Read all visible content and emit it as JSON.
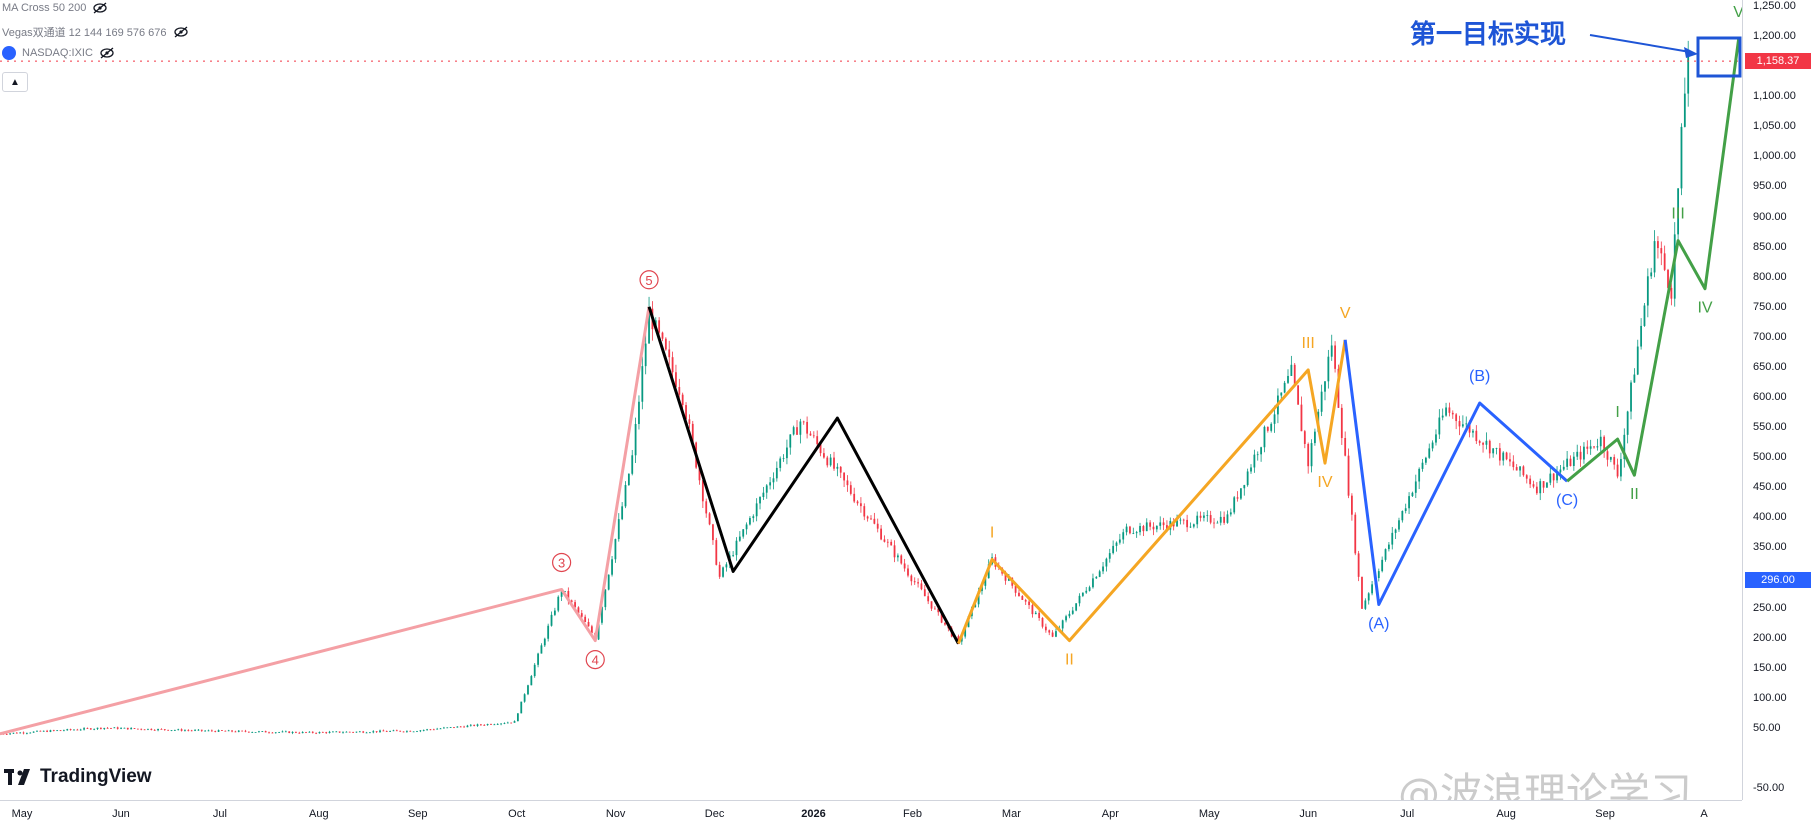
{
  "legend": {
    "ma_cross": "MA Cross 50 200",
    "vegas": "Vegas双通道 12 144 169 576 676",
    "symbol": "NASDAQ:IXIC"
  },
  "annotation": "第一目标实现",
  "branding": {
    "logo_text": "TradingView",
    "watermark": "@波浪理论学习"
  },
  "price_axis": {
    "ticks": [
      {
        "label": "1,250.00",
        "value": 1250
      },
      {
        "label": "1,200.00",
        "value": 1200
      },
      {
        "label": "1,100.00",
        "value": 1100
      },
      {
        "label": "1,050.00",
        "value": 1050
      },
      {
        "label": "1,000.00",
        "value": 1000
      },
      {
        "label": "950.00",
        "value": 950
      },
      {
        "label": "900.00",
        "value": 900
      },
      {
        "label": "850.00",
        "value": 850
      },
      {
        "label": "800.00",
        "value": 800
      },
      {
        "label": "750.00",
        "value": 750
      },
      {
        "label": "700.00",
        "value": 700
      },
      {
        "label": "650.00",
        "value": 650
      },
      {
        "label": "600.00",
        "value": 600
      },
      {
        "label": "550.00",
        "value": 550
      },
      {
        "label": "500.00",
        "value": 500
      },
      {
        "label": "450.00",
        "value": 450
      },
      {
        "label": "400.00",
        "value": 400
      },
      {
        "label": "350.00",
        "value": 350
      },
      {
        "label": "250.00",
        "value": 250
      },
      {
        "label": "200.00",
        "value": 200
      },
      {
        "label": "150.00",
        "value": 150
      },
      {
        "label": "100.00",
        "value": 100
      },
      {
        "label": "50.00",
        "value": 50
      },
      {
        "label": "-50.00",
        "value": -50
      }
    ],
    "current_price": {
      "label": "1,158.37",
      "value": 1158.37,
      "color": "#f23645"
    },
    "marker_price": {
      "label": "296.00",
      "value": 296,
      "color": "#2962ff"
    }
  },
  "time_axis": {
    "ticks": [
      {
        "label": "May",
        "bold": false
      },
      {
        "label": "Jun",
        "bold": false
      },
      {
        "label": "Jul",
        "bold": false
      },
      {
        "label": "Aug",
        "bold": false
      },
      {
        "label": "Sep",
        "bold": false
      },
      {
        "label": "Oct",
        "bold": false
      },
      {
        "label": "Nov",
        "bold": false
      },
      {
        "label": "Dec",
        "bold": false
      },
      {
        "label": "2026",
        "bold": true
      },
      {
        "label": "Feb",
        "bold": false
      },
      {
        "label": "Mar",
        "bold": false
      },
      {
        "label": "Apr",
        "bold": false
      },
      {
        "label": "May",
        "bold": false
      },
      {
        "label": "Jun",
        "bold": false
      },
      {
        "label": "Jul",
        "bold": false
      },
      {
        "label": "Aug",
        "bold": false
      },
      {
        "label": "Sep",
        "bold": false
      },
      {
        "label": "A",
        "bold": false
      }
    ]
  },
  "chart_data": {
    "type": "line",
    "y_range": [
      -70,
      1260
    ],
    "candles": {
      "up_color": "#089981",
      "down_color": "#f23645"
    },
    "price_path": [
      [
        "2025-05-01",
        40
      ],
      [
        "2025-06-01",
        50
      ],
      [
        "2025-07-01",
        45
      ],
      [
        "2025-08-01",
        42
      ],
      [
        "2025-09-01",
        45
      ],
      [
        "2025-10-01",
        60
      ],
      [
        "2025-10-15",
        280
      ],
      [
        "2025-10-25",
        200
      ],
      [
        "2025-11-05",
        500
      ],
      [
        "2025-11-10",
        740
      ],
      [
        "2025-11-20",
        600
      ],
      [
        "2025-12-01",
        300
      ],
      [
        "2025-12-25",
        560
      ],
      [
        "2026-02-10",
        190
      ],
      [
        "2026-02-20",
        330
      ],
      [
        "2026-03-10",
        200
      ],
      [
        "2026-04-01",
        380
      ],
      [
        "2026-05-01",
        400
      ],
      [
        "2026-05-20",
        640
      ],
      [
        "2026-05-25",
        490
      ],
      [
        "2026-06-01",
        690
      ],
      [
        "2026-06-10",
        250
      ],
      [
        "2026-07-05",
        580
      ],
      [
        "2026-08-01",
        450
      ],
      [
        "2026-08-20",
        530
      ],
      [
        "2026-08-25",
        470
      ],
      [
        "2026-09-05",
        860
      ],
      [
        "2026-09-10",
        780
      ],
      [
        "2026-09-15",
        1190
      ]
    ],
    "wave_counts": [
      {
        "color": "#f4a0a5",
        "points": [
          [
            "2025-05-01",
            40
          ],
          [
            "2025-10-15",
            280
          ],
          [
            "2025-10-25",
            195
          ],
          [
            "2025-11-10",
            750
          ]
        ],
        "labels": [
          {
            "text": "3",
            "circled": true,
            "at": [
              "2025-10-15",
              280
            ],
            "pos": "above"
          },
          {
            "text": "4",
            "circled": true,
            "at": [
              "2025-10-25",
              195
            ],
            "pos": "below"
          },
          {
            "text": "5",
            "circled": true,
            "at": [
              "2025-11-10",
              750
            ],
            "pos": "above"
          }
        ]
      },
      {
        "color": "#000000",
        "points": [
          [
            "2025-11-10",
            750
          ],
          [
            "2025-12-05",
            310
          ],
          [
            "2026-01-05",
            565
          ],
          [
            "2026-02-10",
            190
          ]
        ],
        "labels": []
      },
      {
        "color": "#f5a623",
        "points": [
          [
            "2026-02-10",
            190
          ],
          [
            "2026-02-20",
            330
          ],
          [
            "2026-03-15",
            195
          ],
          [
            "2026-05-25",
            645
          ],
          [
            "2026-05-30",
            490
          ],
          [
            "2026-06-05",
            695
          ]
        ],
        "labels": [
          {
            "text": "I",
            "at": [
              "2026-02-20",
              330
            ],
            "pos": "above"
          },
          {
            "text": "II",
            "at": [
              "2026-03-15",
              195
            ],
            "pos": "below"
          },
          {
            "text": "III",
            "at": [
              "2026-05-25",
              645
            ],
            "pos": "above"
          },
          {
            "text": "IV",
            "at": [
              "2026-05-30",
              490
            ],
            "pos": "below"
          },
          {
            "text": "V",
            "at": [
              "2026-06-05",
              695
            ],
            "pos": "above"
          }
        ]
      },
      {
        "color": "#2962ff",
        "points": [
          [
            "2026-06-05",
            695
          ],
          [
            "2026-06-15",
            255
          ],
          [
            "2026-07-15",
            590
          ],
          [
            "2026-08-10",
            460
          ]
        ],
        "labels": [
          {
            "text": "(A)",
            "at": [
              "2026-06-15",
              255
            ],
            "pos": "below"
          },
          {
            "text": "(B)",
            "at": [
              "2026-07-15",
              590
            ],
            "pos": "above"
          },
          {
            "text": "(C)",
            "at": [
              "2026-08-10",
              460
            ],
            "pos": "below"
          }
        ]
      },
      {
        "color": "#43a047",
        "points": [
          [
            "2026-08-10",
            460
          ],
          [
            "2026-08-25",
            530
          ],
          [
            "2026-08-30",
            470
          ],
          [
            "2026-09-12",
            860
          ],
          [
            "2026-09-20",
            780
          ],
          [
            "2026-09-30",
            1195
          ]
        ],
        "labels": [
          {
            "text": "I",
            "at": [
              "2026-08-25",
              530
            ],
            "pos": "above"
          },
          {
            "text": "II",
            "at": [
              "2026-08-30",
              470
            ],
            "pos": "below"
          },
          {
            "text": "III",
            "at": [
              "2026-09-12",
              860
            ],
            "pos": "above"
          },
          {
            "text": "IV",
            "at": [
              "2026-09-20",
              780
            ],
            "pos": "below"
          },
          {
            "text": "V",
            "at": [
              "2026-09-30",
              1195
            ],
            "pos": "above"
          }
        ]
      }
    ]
  }
}
